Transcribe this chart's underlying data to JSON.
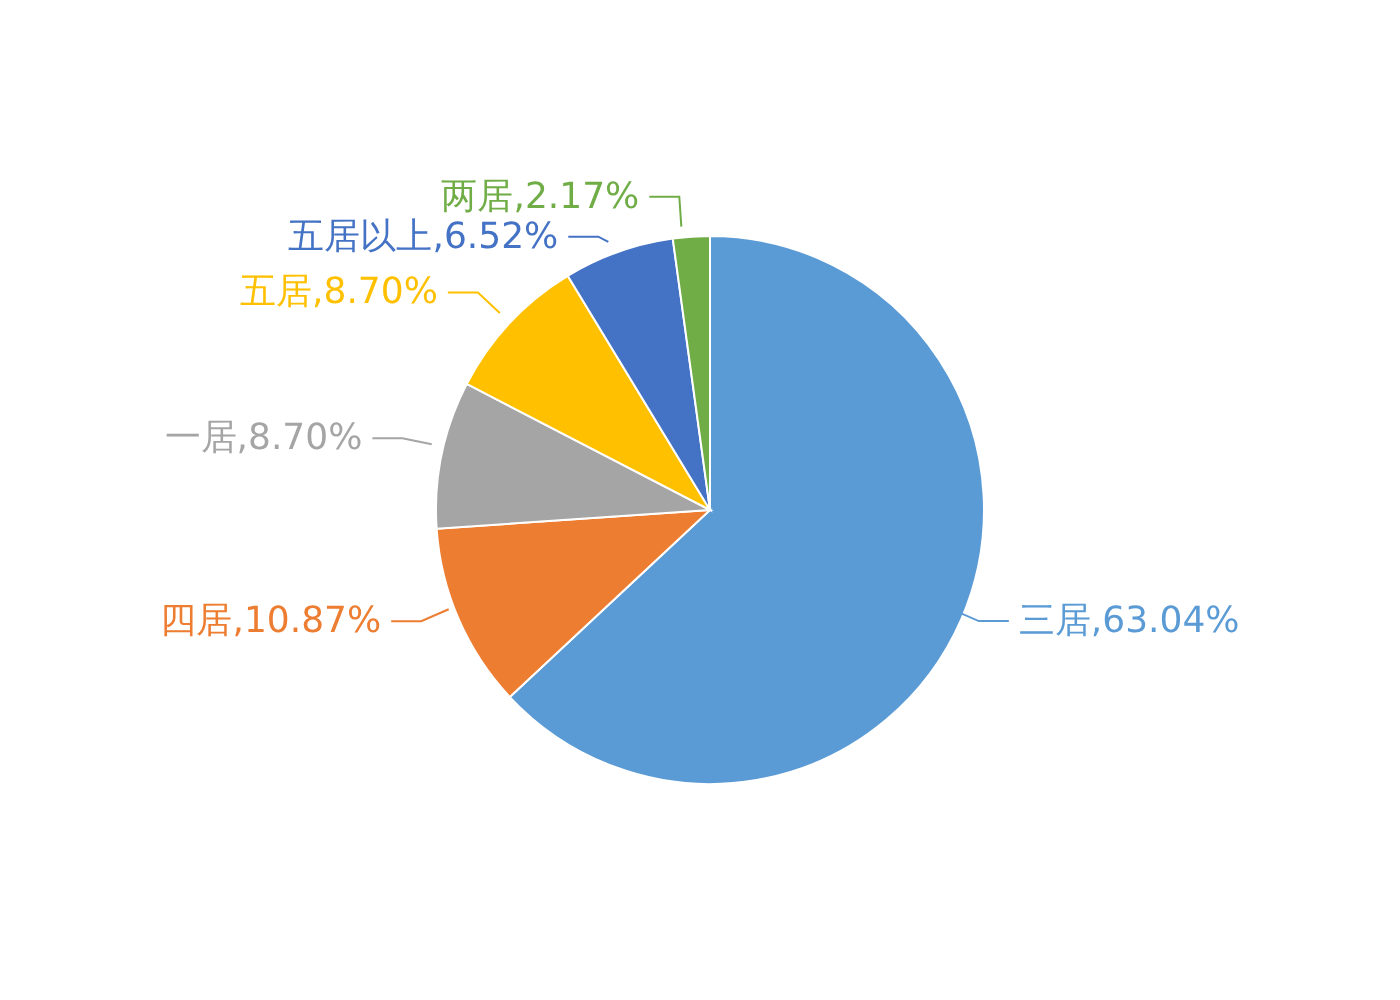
{
  "chart_data": {
    "type": "pie",
    "categories": [
      "三居",
      "四居",
      "一居",
      "五居",
      "五居以上",
      "两居"
    ],
    "values": [
      63.04,
      10.87,
      8.7,
      8.7,
      6.52,
      2.17
    ],
    "colors": [
      "#5b9bd5",
      "#ed7d31",
      "#a5a5a5",
      "#ffc000",
      "#4472c4",
      "#70ad47"
    ],
    "value_labels": [
      "63.04%",
      "10.87%",
      "8.70%",
      "8.70%",
      "6.52%",
      "2.17%"
    ]
  }
}
